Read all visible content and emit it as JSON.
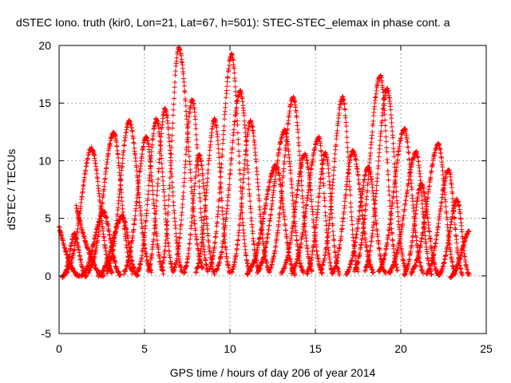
{
  "chart_data": {
    "type": "scatter",
    "title": "dSTEC Iono. truth (kir0, Lon=21, Lat=67, h=501): STEC-STEC_elemax in phase cont. a",
    "xlabel": "GPS time / hours of day 206 of year 2014",
    "ylabel": "dSTEC  / TECUs",
    "xlim": [
      0,
      25
    ],
    "ylim": [
      -5,
      20
    ],
    "xticks": [
      0,
      5,
      10,
      15,
      20,
      25
    ],
    "yticks": [
      -5,
      0,
      5,
      10,
      15,
      20
    ],
    "grid": true,
    "marker": "+",
    "color": "#ff0000",
    "arcs": [
      {
        "t_start": 0.0,
        "t_peak": 0.0,
        "t_end": 1.2,
        "peak": 4.3,
        "shape": "decay"
      },
      {
        "t_start": 0.4,
        "t_peak": 1.9,
        "t_end": 3.1,
        "peak": 11.1,
        "shape": "rise-fall"
      },
      {
        "t_start": 0.2,
        "t_peak": 0.9,
        "t_end": 1.6,
        "peak": 3.6,
        "shape": "rise-fall"
      },
      {
        "t_start": 1.0,
        "t_peak": 1.1,
        "t_end": 2.6,
        "peak": 6.0,
        "shape": "decay"
      },
      {
        "t_start": 1.3,
        "t_peak": 2.6,
        "t_end": 3.6,
        "peak": 5.6,
        "shape": "rise-fall"
      },
      {
        "t_start": 1.7,
        "t_peak": 3.2,
        "t_end": 4.3,
        "peak": 12.4,
        "shape": "rise-fall"
      },
      {
        "t_start": 2.3,
        "t_peak": 3.7,
        "t_end": 4.6,
        "peak": 5.2,
        "shape": "rise-fall"
      },
      {
        "t_start": 2.8,
        "t_peak": 4.1,
        "t_end": 5.4,
        "peak": 13.4,
        "shape": "rise-fall"
      },
      {
        "t_start": 3.8,
        "t_peak": 5.1,
        "t_end": 6.1,
        "peak": 12.0,
        "shape": "rise-fall"
      },
      {
        "t_start": 4.6,
        "t_peak": 5.7,
        "t_end": 6.7,
        "peak": 13.6,
        "shape": "rise-fall"
      },
      {
        "t_start": 5.2,
        "t_peak": 6.2,
        "t_end": 7.2,
        "peak": 14.5,
        "shape": "rise-fall"
      },
      {
        "t_start": 6.0,
        "t_peak": 7.0,
        "t_end": 8.4,
        "peak": 19.8,
        "shape": "rise-fall"
      },
      {
        "t_start": 6.7,
        "t_peak": 7.8,
        "t_end": 8.7,
        "peak": 15.3,
        "shape": "rise-fall"
      },
      {
        "t_start": 7.3,
        "t_peak": 8.2,
        "t_end": 9.1,
        "peak": 10.5,
        "shape": "rise-fall"
      },
      {
        "t_start": 8.0,
        "t_peak": 9.1,
        "t_end": 10.0,
        "peak": 13.6,
        "shape": "rise-fall"
      },
      {
        "t_start": 8.8,
        "t_peak": 10.1,
        "t_end": 11.1,
        "peak": 19.2,
        "shape": "rise-fall"
      },
      {
        "t_start": 9.2,
        "t_peak": 10.6,
        "t_end": 11.7,
        "peak": 16.0,
        "shape": "rise-fall"
      },
      {
        "t_start": 10.1,
        "t_peak": 11.2,
        "t_end": 12.3,
        "peak": 13.4,
        "shape": "rise-fall"
      },
      {
        "t_start": 11.0,
        "t_peak": 12.7,
        "t_end": 13.8,
        "peak": 9.6,
        "shape": "rise-fall"
      },
      {
        "t_start": 11.6,
        "t_peak": 13.2,
        "t_end": 14.3,
        "peak": 12.6,
        "shape": "rise-fall"
      },
      {
        "t_start": 12.3,
        "t_peak": 13.7,
        "t_end": 14.8,
        "peak": 15.5,
        "shape": "rise-fall"
      },
      {
        "t_start": 13.0,
        "t_peak": 14.4,
        "t_end": 15.4,
        "peak": 10.5,
        "shape": "rise-fall"
      },
      {
        "t_start": 13.6,
        "t_peak": 15.2,
        "t_end": 16.0,
        "peak": 12.0,
        "shape": "rise-fall"
      },
      {
        "t_start": 14.5,
        "t_peak": 15.6,
        "t_end": 16.4,
        "peak": 10.6,
        "shape": "rise-fall"
      },
      {
        "t_start": 15.3,
        "t_peak": 16.6,
        "t_end": 17.5,
        "peak": 15.5,
        "shape": "rise-fall"
      },
      {
        "t_start": 16.0,
        "t_peak": 17.2,
        "t_end": 18.4,
        "peak": 10.8,
        "shape": "rise-fall"
      },
      {
        "t_start": 16.8,
        "t_peak": 18.1,
        "t_end": 19.1,
        "peak": 9.4,
        "shape": "rise-fall"
      },
      {
        "t_start": 17.3,
        "t_peak": 18.8,
        "t_end": 19.8,
        "peak": 17.4,
        "shape": "rise-fall"
      },
      {
        "t_start": 17.9,
        "t_peak": 19.2,
        "t_end": 20.3,
        "peak": 16.2,
        "shape": "rise-fall"
      },
      {
        "t_start": 18.7,
        "t_peak": 20.2,
        "t_end": 21.3,
        "peak": 12.8,
        "shape": "rise-fall"
      },
      {
        "t_start": 19.3,
        "t_peak": 20.9,
        "t_end": 21.8,
        "peak": 10.7,
        "shape": "rise-fall"
      },
      {
        "t_start": 20.2,
        "t_peak": 21.2,
        "t_end": 22.2,
        "peak": 8.0,
        "shape": "rise-fall"
      },
      {
        "t_start": 20.6,
        "t_peak": 22.2,
        "t_end": 23.2,
        "peak": 11.4,
        "shape": "rise-fall"
      },
      {
        "t_start": 21.5,
        "t_peak": 22.8,
        "t_end": 23.6,
        "peak": 9.2,
        "shape": "rise-fall"
      },
      {
        "t_start": 22.2,
        "t_peak": 23.3,
        "t_end": 24.0,
        "peak": 6.6,
        "shape": "rise-fall"
      },
      {
        "t_start": 22.9,
        "t_peak": 24.0,
        "t_end": 24.0,
        "peak": 3.8,
        "shape": "rise-fall"
      }
    ]
  }
}
